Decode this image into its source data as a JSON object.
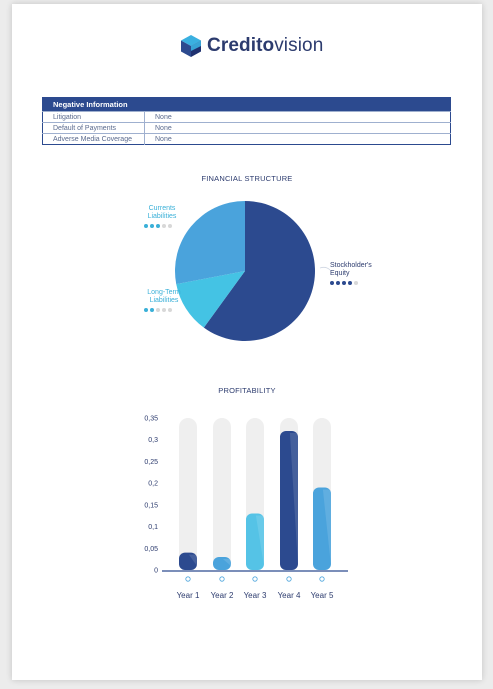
{
  "brand": {
    "name_bold": "Credito",
    "name_light": "vision"
  },
  "negative_info": {
    "title": "Negative Information",
    "rows": [
      {
        "label": "Litigation",
        "value": "None"
      },
      {
        "label": "Default of Payments",
        "value": "None"
      },
      {
        "label": "Adverse Media Coverage",
        "value": "None"
      }
    ]
  },
  "financial_structure": {
    "title": "FINANCIAL STRUCTURE",
    "labels": {
      "current": [
        "Currents",
        "Liabilities"
      ],
      "longterm": [
        "Long-Term",
        "Liabilities"
      ],
      "equity": [
        "Stockholder's",
        "Equity"
      ]
    },
    "ratings": {
      "current": 3,
      "longterm": 2,
      "equity": 4
    }
  },
  "profitability": {
    "title": "PROFITABILITY"
  },
  "colors": {
    "navy": "#2c4a8f",
    "blue": "#4aa3dc",
    "cyan": "#44c3e4",
    "track": "#efefef",
    "text": "#2c3b6e"
  },
  "chart_data": [
    {
      "type": "pie",
      "title": "FINANCIAL STRUCTURE",
      "slices": [
        {
          "name": "Stockholder's Equity",
          "value": 60,
          "color": "#2c4a8f"
        },
        {
          "name": "Long-Term Liabilities",
          "value": 12,
          "color": "#44c3e4"
        },
        {
          "name": "Currents Liabilities",
          "value": 28,
          "color": "#4aa3dc"
        }
      ]
    },
    {
      "type": "bar",
      "title": "PROFITABILITY",
      "categories": [
        "Year 1",
        "Year 2",
        "Year 3",
        "Year 4",
        "Year 5"
      ],
      "values": [
        0.04,
        0.03,
        0.13,
        0.32,
        0.19
      ],
      "colors": [
        "#2c4a8f",
        "#4aa3dc",
        "#55c3e6",
        "#2c4a8f",
        "#4aa3dc"
      ],
      "ylim": [
        0,
        0.35
      ],
      "yticks": [
        "0",
        "0,05",
        "0,1",
        "0,15",
        "0,2",
        "0,25",
        "0,3",
        "0,35"
      ],
      "ytick_values": [
        0,
        0.05,
        0.1,
        0.15,
        0.2,
        0.25,
        0.3,
        0.35
      ]
    }
  ]
}
